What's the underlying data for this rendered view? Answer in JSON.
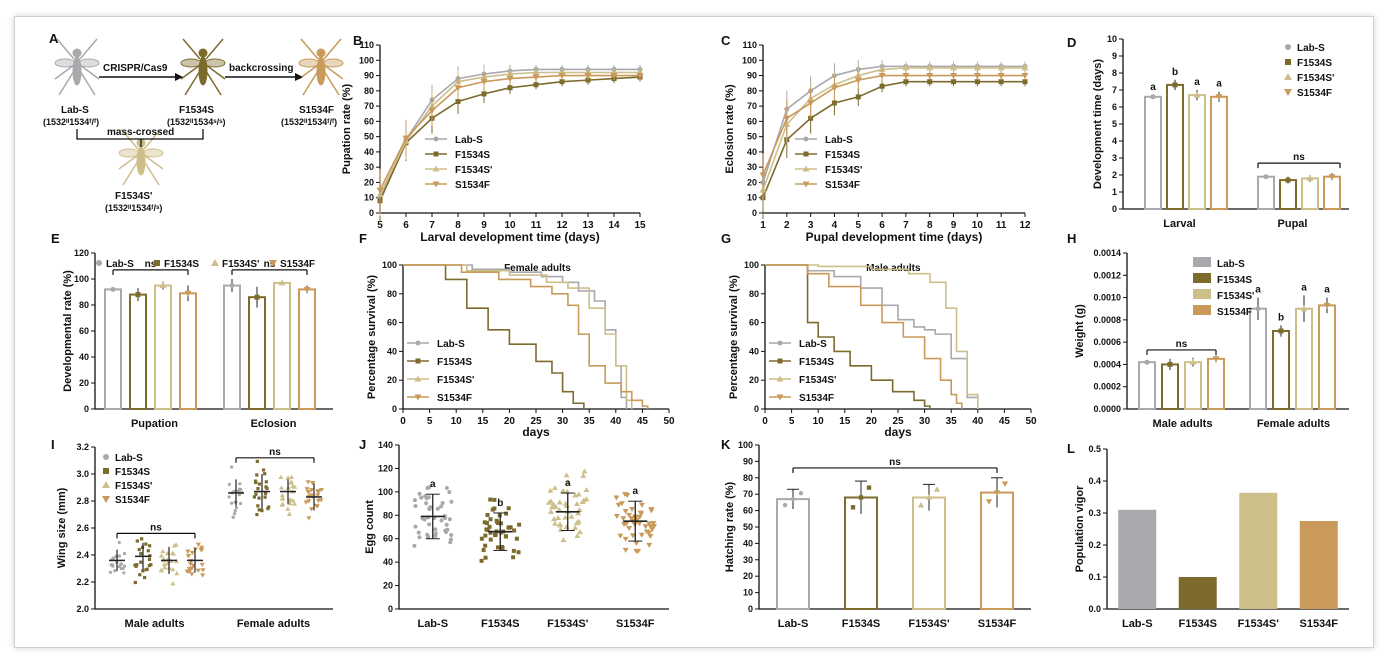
{
  "colors": {
    "labS": "#a9a9ad",
    "F1534S": "#7d6b2e",
    "F1534Sp": "#cdbf8a",
    "S1534F": "#c99a5a"
  },
  "panel_a": {
    "panel_label": "A",
    "step1": "CRISPR/Cas9",
    "step2": "backcrossing",
    "cross_label": "mass-crossed",
    "strains": [
      {
        "name": "Lab-S",
        "genotype": "(1532ᴵᴵ1534ᶠ/ᶠ)"
      },
      {
        "name": "F1534S",
        "genotype": "(1532ᴵᴵ1534ˢ/ˢ)"
      },
      {
        "name": "S1534F",
        "genotype": "(1532ᴵᴵ1534ᶠ/ᶠ)"
      },
      {
        "name": "F1534S'",
        "genotype": "(1532ᴵᴵ1534ᶠ/ˢ)"
      }
    ]
  },
  "chart_data": [
    {
      "panel": "B",
      "type": "line",
      "title": "",
      "xlabel": "Larval development time (days)",
      "ylabel": "Pupation rate (%)",
      "x": [
        5,
        6,
        7,
        8,
        9,
        10,
        11,
        12,
        13,
        14,
        15
      ],
      "xlim": [
        5,
        15
      ],
      "ylim": [
        0,
        110
      ],
      "yticks": [
        0,
        10,
        20,
        30,
        40,
        50,
        60,
        70,
        80,
        90,
        100,
        110
      ],
      "legend": "bottom-right",
      "series": [
        {
          "name": "Lab-S",
          "values": [
            10,
            48,
            74,
            88,
            91,
            93,
            94,
            94,
            94,
            94,
            94
          ]
        },
        {
          "name": "F1534S",
          "values": [
            8,
            46,
            62,
            73,
            78,
            82,
            84,
            86,
            87,
            88,
            89
          ]
        },
        {
          "name": "F1534S'",
          "values": [
            12,
            47,
            70,
            86,
            89,
            91,
            92,
            92,
            92,
            92,
            92
          ]
        },
        {
          "name": "S1534F",
          "values": [
            15,
            49,
            67,
            82,
            86,
            88,
            89,
            90,
            90,
            90,
            90
          ]
        }
      ]
    },
    {
      "panel": "C",
      "type": "line",
      "title": "",
      "xlabel": "Pupal development time (days)",
      "ylabel": "Eclosion rate (%)",
      "x": [
        1,
        2,
        3,
        4,
        5,
        6,
        7,
        8,
        9,
        10,
        11,
        12
      ],
      "xlim": [
        1,
        12
      ],
      "ylim": [
        0,
        110
      ],
      "yticks": [
        0,
        10,
        20,
        30,
        40,
        50,
        60,
        70,
        80,
        90,
        100,
        110
      ],
      "legend": "bottom-right",
      "series": [
        {
          "name": "Lab-S",
          "values": [
            20,
            68,
            80,
            90,
            94,
            96,
            96,
            96,
            96,
            96,
            96,
            96
          ]
        },
        {
          "name": "F1534S",
          "values": [
            10,
            48,
            62,
            72,
            76,
            83,
            86,
            86,
            86,
            86,
            86,
            86
          ]
        },
        {
          "name": "F1534S'",
          "values": [
            15,
            58,
            75,
            84,
            90,
            94,
            95,
            95,
            95,
            95,
            95,
            95
          ]
        },
        {
          "name": "S1534F",
          "values": [
            25,
            62,
            72,
            82,
            87,
            90,
            90,
            90,
            90,
            90,
            90,
            90
          ]
        }
      ]
    },
    {
      "panel": "D",
      "type": "bar",
      "title": "",
      "xlabel": "",
      "ylabel": "Development time (days)",
      "categories": [
        "Larval",
        "Pupal"
      ],
      "ylim": [
        0,
        10
      ],
      "yticks": [
        0,
        1,
        2,
        3,
        4,
        5,
        6,
        7,
        8,
        9,
        10
      ],
      "legend": "top-right",
      "series": [
        {
          "name": "Lab-S",
          "values": [
            6.6,
            1.9
          ],
          "sd": [
            0.1,
            0.1
          ],
          "letters": [
            "a",
            ""
          ]
        },
        {
          "name": "F1534S",
          "values": [
            7.3,
            1.7
          ],
          "sd": [
            0.3,
            0.2
          ],
          "letters": [
            "b",
            ""
          ]
        },
        {
          "name": "F1534S'",
          "values": [
            6.7,
            1.8
          ],
          "sd": [
            0.3,
            0.2
          ],
          "letters": [
            "a",
            ""
          ]
        },
        {
          "name": "S1534F",
          "values": [
            6.6,
            1.9
          ],
          "sd": [
            0.3,
            0.2
          ],
          "letters": [
            "a",
            ""
          ]
        }
      ],
      "annotations": [
        {
          "text": "ns",
          "group": 1
        }
      ]
    },
    {
      "panel": "E",
      "type": "bar",
      "title": "",
      "xlabel": "",
      "ylabel": "Developmental rate (%)",
      "categories": [
        "Pupation",
        "Eclosion"
      ],
      "ylim": [
        0,
        120
      ],
      "yticks": [
        0,
        20,
        40,
        60,
        80,
        100,
        120
      ],
      "legend": "top",
      "series": [
        {
          "name": "Lab-S",
          "values": [
            92,
            95
          ],
          "sd": [
            1,
            5
          ]
        },
        {
          "name": "F1534S",
          "values": [
            88,
            86
          ],
          "sd": [
            5,
            8
          ]
        },
        {
          "name": "F1534S'",
          "values": [
            95,
            97
          ],
          "sd": [
            3,
            1
          ]
        },
        {
          "name": "S1534F",
          "values": [
            89,
            92
          ],
          "sd": [
            6,
            3
          ]
        }
      ],
      "annotations": [
        {
          "text": "ns",
          "group": 0
        },
        {
          "text": "ns",
          "group": 1
        }
      ]
    },
    {
      "panel": "F",
      "type": "line",
      "title": "Female adults",
      "xlabel": "days",
      "ylabel": "Percentage survival (%)",
      "xlim": [
        0,
        50
      ],
      "ylim": [
        0,
        100
      ],
      "xticks": [
        0,
        5,
        10,
        15,
        20,
        25,
        30,
        35,
        40,
        45,
        50
      ],
      "yticks": [
        0,
        20,
        40,
        60,
        80,
        100
      ],
      "legend": "bottom-left",
      "series": [
        {
          "name": "Lab-S",
          "x": [
            0,
            13,
            20,
            26,
            30,
            33,
            36,
            38,
            40,
            41,
            42
          ],
          "values": [
            100,
            97,
            95,
            92,
            88,
            82,
            75,
            55,
            30,
            8,
            0
          ]
        },
        {
          "name": "F1534S",
          "x": [
            0,
            8,
            12,
            16,
            20,
            25,
            28,
            30,
            32,
            34
          ],
          "values": [
            100,
            90,
            70,
            55,
            45,
            33,
            25,
            12,
            4,
            0
          ]
        },
        {
          "name": "F1534S'",
          "x": [
            0,
            12,
            20,
            27,
            31,
            35,
            38,
            40,
            42,
            43
          ],
          "values": [
            100,
            96,
            93,
            88,
            84,
            70,
            52,
            30,
            6,
            0
          ]
        },
        {
          "name": "S1534F",
          "x": [
            0,
            11,
            18,
            24,
            28,
            31,
            33,
            35,
            38,
            41,
            43,
            45,
            46
          ],
          "values": [
            100,
            95,
            90,
            85,
            80,
            72,
            52,
            30,
            18,
            12,
            6,
            2,
            0
          ]
        }
      ]
    },
    {
      "panel": "G",
      "type": "line",
      "title": "Male adults",
      "xlabel": "days",
      "ylabel": "Percentage survival (%)",
      "xlim": [
        0,
        50
      ],
      "ylim": [
        0,
        100
      ],
      "xticks": [
        0,
        5,
        10,
        15,
        20,
        25,
        30,
        35,
        40,
        45,
        50
      ],
      "yticks": [
        0,
        20,
        40,
        60,
        80,
        100
      ],
      "legend": "bottom-left",
      "series": [
        {
          "name": "Lab-S",
          "x": [
            0,
            8,
            13,
            18,
            22,
            25,
            28,
            30,
            32,
            35,
            38,
            40
          ],
          "values": [
            100,
            96,
            92,
            84,
            72,
            62,
            57,
            55,
            52,
            35,
            8,
            0
          ]
        },
        {
          "name": "F1534S",
          "x": [
            0,
            7,
            8,
            10,
            13,
            16,
            20,
            24,
            28,
            30,
            31
          ],
          "values": [
            100,
            100,
            60,
            50,
            40,
            30,
            20,
            12,
            6,
            2,
            0
          ]
        },
        {
          "name": "F1534S'",
          "x": [
            0,
            10,
            20,
            27,
            31,
            34,
            36,
            38,
            40
          ],
          "values": [
            100,
            99,
            97,
            94,
            88,
            70,
            40,
            10,
            0
          ]
        },
        {
          "name": "S1534F",
          "x": [
            0,
            8,
            12,
            18,
            22,
            26,
            30,
            33,
            35,
            36,
            37
          ],
          "values": [
            100,
            94,
            85,
            72,
            60,
            50,
            35,
            20,
            10,
            4,
            0
          ]
        }
      ]
    },
    {
      "panel": "H",
      "type": "bar",
      "title": "",
      "xlabel": "",
      "ylabel": "Weight (g)",
      "categories": [
        "Male adults",
        "Female adults"
      ],
      "ylim": [
        0,
        0.0014
      ],
      "yticks": [
        "0.0000",
        "0.0002",
        "0.0004",
        "0.0006",
        "0.0008",
        "0.0010",
        "0.0012",
        "0.0014"
      ],
      "legend": "top-right",
      "series": [
        {
          "name": "Lab-S",
          "values": [
            0.00042,
            0.0009
          ],
          "sd": [
            2e-05,
            0.0001
          ],
          "letters": [
            "",
            "a"
          ]
        },
        {
          "name": "F1534S",
          "values": [
            0.0004,
            0.0007
          ],
          "sd": [
            5e-05,
            5e-05
          ],
          "letters": [
            "",
            "b"
          ]
        },
        {
          "name": "F1534S'",
          "values": [
            0.00042,
            0.0009
          ],
          "sd": [
            4e-05,
            0.00012
          ],
          "letters": [
            "",
            "a"
          ]
        },
        {
          "name": "S1534F",
          "values": [
            0.00045,
            0.00093
          ],
          "sd": [
            3e-05,
            7e-05
          ],
          "letters": [
            "",
            "a"
          ]
        }
      ],
      "annotations": [
        {
          "text": "ns",
          "group": 0
        }
      ]
    },
    {
      "panel": "I",
      "type": "scatter",
      "title": "",
      "xlabel": "",
      "ylabel": "Wing size (mm)",
      "categories": [
        "Male adults",
        "Female adults"
      ],
      "ylim": [
        2.0,
        3.2
      ],
      "yticks": [
        "2.0",
        "2.2",
        "2.4",
        "2.6",
        "2.8",
        "3.0",
        "3.2"
      ],
      "legend": "top-left",
      "series": [
        {
          "name": "Lab-S",
          "means": [
            2.36,
            2.86
          ],
          "sd": [
            0.08,
            0.1
          ]
        },
        {
          "name": "F1534S",
          "means": [
            2.39,
            2.87
          ],
          "sd": [
            0.1,
            0.13
          ]
        },
        {
          "name": "F1534S'",
          "means": [
            2.36,
            2.87
          ],
          "sd": [
            0.1,
            0.09
          ]
        },
        {
          "name": "S1534F",
          "means": [
            2.36,
            2.83
          ],
          "sd": [
            0.09,
            0.1
          ]
        }
      ],
      "annotations": [
        {
          "text": "ns",
          "group": 0
        },
        {
          "text": "ns",
          "group": 1
        }
      ]
    },
    {
      "panel": "J",
      "type": "scatter",
      "title": "",
      "xlabel": "",
      "ylabel": "Egg count",
      "categories": [
        "Lab-S",
        "F1534S",
        "F1534S'",
        "S1534F"
      ],
      "ylim": [
        0,
        140
      ],
      "yticks": [
        0,
        20,
        40,
        60,
        80,
        100,
        120,
        140
      ],
      "series": [
        {
          "name": "Egg count",
          "means": [
            79,
            66,
            83,
            75
          ],
          "sd": [
            19,
            16,
            16,
            17
          ],
          "letters": [
            "a",
            "b",
            "a",
            "a"
          ]
        }
      ]
    },
    {
      "panel": "K",
      "type": "bar",
      "title": "",
      "xlabel": "",
      "ylabel": "Hatching rate (%)",
      "categories": [
        "Lab-S",
        "F1534S",
        "F1534S'",
        "S1534F"
      ],
      "ylim": [
        0,
        100
      ],
      "yticks": [
        0,
        10,
        20,
        30,
        40,
        50,
        60,
        70,
        80,
        90,
        100
      ],
      "series": [
        {
          "name": "Hatching rate",
          "values": [
            67,
            68,
            68,
            71
          ],
          "sd": [
            6,
            10,
            8,
            9
          ]
        }
      ],
      "annotations": [
        {
          "text": "ns"
        }
      ]
    },
    {
      "panel": "L",
      "type": "bar",
      "title": "",
      "xlabel": "",
      "ylabel": "Population vigor",
      "categories": [
        "Lab-S",
        "F1534S",
        "F1534S'",
        "S1534F"
      ],
      "ylim": [
        0,
        0.5
      ],
      "yticks": [
        "0.0",
        "0.1",
        "0.2",
        "0.3",
        "0.4",
        "0.5"
      ],
      "series": [
        {
          "name": "Population vigor",
          "values": [
            0.31,
            0.1,
            0.363,
            0.275
          ]
        }
      ]
    }
  ]
}
